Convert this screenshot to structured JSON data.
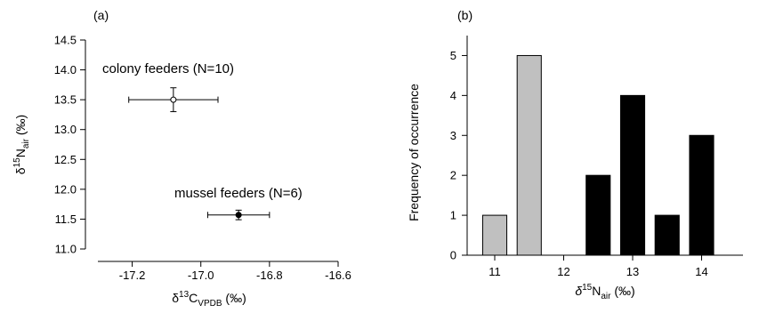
{
  "chart_data": [
    {
      "type": "scatter",
      "panel_label": "(a)",
      "xlabel": {
        "delta": "δ",
        "sup": "13",
        "base": "C",
        "sub": "VPDB",
        "unit": " (‰)"
      },
      "ylabel": {
        "delta": "δ",
        "sup": "15",
        "base": "N",
        "sub": "air",
        "unit": " (‰)"
      },
      "xlim": [
        -17.3,
        -16.6
      ],
      "ylim": [
        11.0,
        14.5
      ],
      "xticks": [
        -17.2,
        -17.0,
        -16.8,
        -16.6
      ],
      "xtick_labels": [
        "-17.2",
        "-17.0",
        "-16.8",
        "-16.6"
      ],
      "yticks": [
        11.0,
        11.5,
        12.0,
        12.5,
        13.0,
        13.5,
        14.0,
        14.5
      ],
      "ytick_labels": [
        "11.0",
        "11.5",
        "12.0",
        "12.5",
        "13.0",
        "13.5",
        "14.0",
        "14.5"
      ],
      "grid": false,
      "points": [
        {
          "x": -17.08,
          "y": 13.5,
          "xerr": 0.13,
          "yerr": 0.2,
          "marker": "open-circle",
          "label": "colony feeders (N=10)"
        },
        {
          "x": -16.89,
          "y": 11.57,
          "xerr": 0.09,
          "yerr": 0.08,
          "marker": "filled-circle",
          "label": "mussel feeders (N=6)"
        }
      ]
    },
    {
      "type": "bar",
      "panel_label": "(b)",
      "xlabel": {
        "delta": "δ",
        "sup": "15",
        "base": "N",
        "sub": "air",
        "unit": " (‰)"
      },
      "ylabel": "Frequency of occurrence",
      "xlim": [
        10.6,
        14.6
      ],
      "ylim": [
        0,
        5.5
      ],
      "xticks": [
        11,
        12,
        13,
        14
      ],
      "xtick_labels": [
        "11",
        "12",
        "13",
        "14"
      ],
      "yticks": [
        0,
        1,
        2,
        3,
        4,
        5
      ],
      "ytick_labels": [
        "0",
        "1",
        "2",
        "3",
        "4",
        "5"
      ],
      "grid": false,
      "bar_width": 0.35,
      "colors": {
        "gray": "#c0c0c0",
        "black": "#000000"
      },
      "bars": [
        {
          "x": 11.0,
          "value": 1,
          "color": "gray"
        },
        {
          "x": 11.5,
          "value": 5,
          "color": "gray"
        },
        {
          "x": 12.5,
          "value": 2,
          "color": "black"
        },
        {
          "x": 13.0,
          "value": 4,
          "color": "black"
        },
        {
          "x": 13.5,
          "value": 1,
          "color": "black"
        },
        {
          "x": 14.0,
          "value": 3,
          "color": "black"
        }
      ]
    }
  ]
}
